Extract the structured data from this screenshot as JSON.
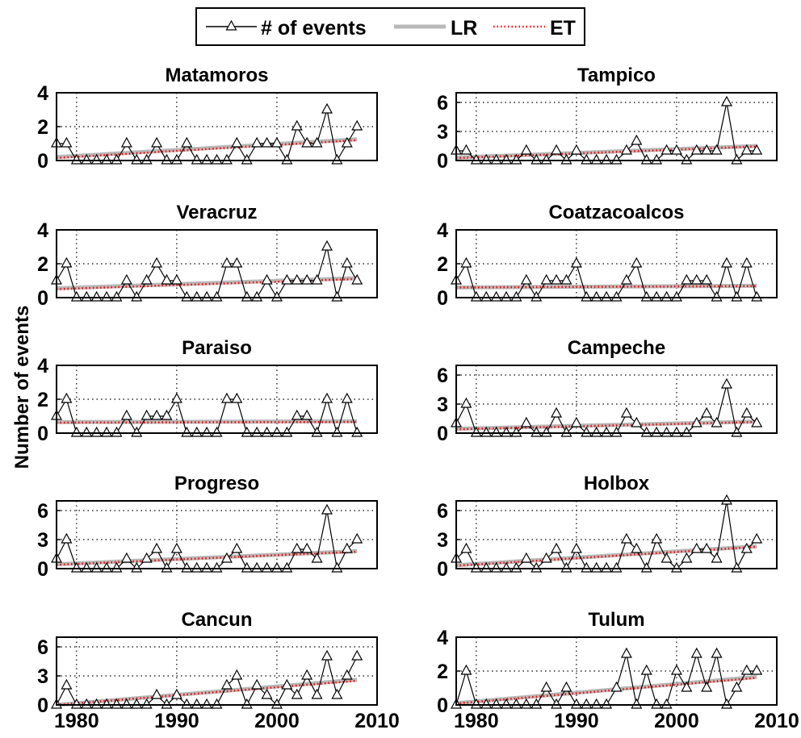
{
  "figure": {
    "ylabel": "Number of events",
    "legend": {
      "position": "top-center",
      "items": [
        {
          "label": "# of events",
          "style": "thin black line with triangle markers",
          "color": "#000000"
        },
        {
          "label": "LR",
          "style": "thick gray line",
          "color": "#b8b8b8"
        },
        {
          "label": "ET",
          "style": "red dotted line",
          "color": "#ff0000"
        }
      ]
    },
    "x_ticks": [
      "1980",
      "1990",
      "2000",
      "2010"
    ]
  },
  "chart_data": [
    {
      "type": "line",
      "title": "Matamoros",
      "grid": true,
      "xlim": [
        1978,
        2010
      ],
      "ylim": [
        0,
        4
      ],
      "yticks": [
        "0",
        "2",
        "4"
      ],
      "x": [
        1978,
        1979,
        1980,
        1981,
        1982,
        1983,
        1984,
        1985,
        1986,
        1987,
        1988,
        1989,
        1990,
        1991,
        1992,
        1993,
        1994,
        1995,
        1996,
        1997,
        1998,
        1999,
        2000,
        2001,
        2002,
        2003,
        2004,
        2005,
        2006,
        2007,
        2008
      ],
      "series": [
        {
          "name": "# of events",
          "values": [
            1,
            1,
            0,
            0,
            0,
            0,
            0,
            1,
            0,
            0,
            1,
            0,
            0,
            1,
            0,
            0,
            0,
            0,
            1,
            0,
            1,
            1,
            1,
            0,
            2,
            1,
            1,
            3,
            0,
            1,
            2
          ]
        },
        {
          "name": "LR",
          "start": [
            1978,
            0.2
          ],
          "end": [
            2008,
            1.25
          ]
        },
        {
          "name": "ET",
          "start": [
            1978,
            0.15
          ],
          "end": [
            2008,
            1.2
          ]
        }
      ]
    },
    {
      "type": "line",
      "title": "Tampico",
      "grid": true,
      "xlim": [
        1978,
        2010
      ],
      "ylim": [
        0,
        7
      ],
      "yticks": [
        "0",
        "3",
        "6"
      ],
      "x": [
        1978,
        1979,
        1980,
        1981,
        1982,
        1983,
        1984,
        1985,
        1986,
        1987,
        1988,
        1989,
        1990,
        1991,
        1992,
        1993,
        1994,
        1995,
        1996,
        1997,
        1998,
        1999,
        2000,
        2001,
        2002,
        2003,
        2004,
        2005,
        2006,
        2007,
        2008
      ],
      "series": [
        {
          "name": "# of events",
          "values": [
            1,
            1,
            0,
            0,
            0,
            0,
            0,
            1,
            0,
            0,
            1,
            0,
            1,
            0,
            0,
            0,
            0,
            1,
            2,
            0,
            0,
            1,
            1,
            0,
            1,
            1,
            1,
            6,
            0,
            1,
            1
          ]
        },
        {
          "name": "LR",
          "start": [
            1978,
            0.3
          ],
          "end": [
            2008,
            1.5
          ]
        },
        {
          "name": "ET",
          "start": [
            1978,
            0.25
          ],
          "end": [
            2008,
            1.45
          ]
        }
      ]
    },
    {
      "type": "line",
      "title": "Veracruz",
      "grid": true,
      "xlim": [
        1978,
        2010
      ],
      "ylim": [
        0,
        4
      ],
      "yticks": [
        "0",
        "2",
        "4"
      ],
      "x": [
        1978,
        1979,
        1980,
        1981,
        1982,
        1983,
        1984,
        1985,
        1986,
        1987,
        1988,
        1989,
        1990,
        1991,
        1992,
        1993,
        1994,
        1995,
        1996,
        1997,
        1998,
        1999,
        2000,
        2001,
        2002,
        2003,
        2004,
        2005,
        2006,
        2007,
        2008
      ],
      "series": [
        {
          "name": "# of events",
          "values": [
            1,
            2,
            0,
            0,
            0,
            0,
            0,
            1,
            0,
            1,
            2,
            1,
            1,
            0,
            0,
            0,
            0,
            2,
            2,
            0,
            0,
            1,
            0,
            1,
            1,
            1,
            1,
            3,
            0,
            2,
            1
          ]
        },
        {
          "name": "LR",
          "start": [
            1978,
            0.55
          ],
          "end": [
            2008,
            1.15
          ]
        },
        {
          "name": "ET",
          "start": [
            1978,
            0.5
          ],
          "end": [
            2008,
            1.1
          ]
        }
      ]
    },
    {
      "type": "line",
      "title": "Coatzacoalcos",
      "grid": true,
      "xlim": [
        1978,
        2010
      ],
      "ylim": [
        0,
        4
      ],
      "yticks": [
        "0",
        "2",
        "4"
      ],
      "x": [
        1978,
        1979,
        1980,
        1981,
        1982,
        1983,
        1984,
        1985,
        1986,
        1987,
        1988,
        1989,
        1990,
        1991,
        1992,
        1993,
        1994,
        1995,
        1996,
        1997,
        1998,
        1999,
        2000,
        2001,
        2002,
        2003,
        2004,
        2005,
        2006,
        2007,
        2008
      ],
      "series": [
        {
          "name": "# of events",
          "values": [
            1,
            2,
            0,
            0,
            0,
            0,
            0,
            1,
            0,
            1,
            1,
            1,
            2,
            0,
            0,
            0,
            0,
            1,
            2,
            0,
            0,
            0,
            0,
            1,
            1,
            1,
            0,
            2,
            0,
            2,
            0
          ]
        },
        {
          "name": "LR",
          "start": [
            1978,
            0.6
          ],
          "end": [
            2008,
            0.7
          ]
        },
        {
          "name": "ET",
          "start": [
            1978,
            0.6
          ],
          "end": [
            2008,
            0.68
          ]
        }
      ]
    },
    {
      "type": "line",
      "title": "Paraiso",
      "grid": true,
      "xlim": [
        1978,
        2010
      ],
      "ylim": [
        0,
        4
      ],
      "yticks": [
        "0",
        "2",
        "4"
      ],
      "x": [
        1978,
        1979,
        1980,
        1981,
        1982,
        1983,
        1984,
        1985,
        1986,
        1987,
        1988,
        1989,
        1990,
        1991,
        1992,
        1993,
        1994,
        1995,
        1996,
        1997,
        1998,
        1999,
        2000,
        2001,
        2002,
        2003,
        2004,
        2005,
        2006,
        2007,
        2008
      ],
      "series": [
        {
          "name": "# of events",
          "values": [
            1,
            2,
            0,
            0,
            0,
            0,
            0,
            1,
            0,
            1,
            1,
            1,
            2,
            0,
            0,
            0,
            0,
            2,
            2,
            0,
            0,
            0,
            0,
            0,
            1,
            1,
            0,
            2,
            0,
            2,
            0
          ]
        },
        {
          "name": "LR",
          "start": [
            1978,
            0.65
          ],
          "end": [
            2008,
            0.7
          ]
        },
        {
          "name": "ET",
          "start": [
            1978,
            0.62
          ],
          "end": [
            2008,
            0.66
          ]
        }
      ]
    },
    {
      "type": "line",
      "title": "Campeche",
      "grid": true,
      "xlim": [
        1978,
        2010
      ],
      "ylim": [
        0,
        7
      ],
      "yticks": [
        "0",
        "3",
        "6"
      ],
      "x": [
        1978,
        1979,
        1980,
        1981,
        1982,
        1983,
        1984,
        1985,
        1986,
        1987,
        1988,
        1989,
        1990,
        1991,
        1992,
        1993,
        1994,
        1995,
        1996,
        1997,
        1998,
        1999,
        2000,
        2001,
        2002,
        2003,
        2004,
        2005,
        2006,
        2007,
        2008
      ],
      "series": [
        {
          "name": "# of events",
          "values": [
            1,
            3,
            0,
            0,
            0,
            0,
            0,
            1,
            0,
            0,
            2,
            0,
            1,
            0,
            0,
            0,
            0,
            2,
            1,
            0,
            0,
            0,
            0,
            0,
            1,
            2,
            1,
            5,
            0,
            2,
            1
          ]
        },
        {
          "name": "LR",
          "start": [
            1978,
            0.45
          ],
          "end": [
            2008,
            1.2
          ]
        },
        {
          "name": "ET",
          "start": [
            1978,
            0.4
          ],
          "end": [
            2008,
            1.15
          ]
        }
      ]
    },
    {
      "type": "line",
      "title": "Progreso",
      "grid": true,
      "xlim": [
        1978,
        2010
      ],
      "ylim": [
        0,
        7
      ],
      "yticks": [
        "0",
        "3",
        "6"
      ],
      "x": [
        1978,
        1979,
        1980,
        1981,
        1982,
        1983,
        1984,
        1985,
        1986,
        1987,
        1988,
        1989,
        1990,
        1991,
        1992,
        1993,
        1994,
        1995,
        1996,
        1997,
        1998,
        1999,
        2000,
        2001,
        2002,
        2003,
        2004,
        2005,
        2006,
        2007,
        2008
      ],
      "series": [
        {
          "name": "# of events",
          "values": [
            1,
            3,
            0,
            0,
            0,
            0,
            0,
            1,
            0,
            1,
            2,
            0,
            2,
            0,
            0,
            0,
            0,
            1,
            2,
            0,
            0,
            0,
            0,
            0,
            2,
            2,
            1,
            6,
            0,
            2,
            3
          ]
        },
        {
          "name": "LR",
          "start": [
            1978,
            0.45
          ],
          "end": [
            2008,
            1.8
          ]
        },
        {
          "name": "ET",
          "start": [
            1978,
            0.4
          ],
          "end": [
            2008,
            1.75
          ]
        }
      ]
    },
    {
      "type": "line",
      "title": "Holbox",
      "grid": true,
      "xlim": [
        1978,
        2010
      ],
      "ylim": [
        0,
        7
      ],
      "yticks": [
        "0",
        "3",
        "6"
      ],
      "x": [
        1978,
        1979,
        1980,
        1981,
        1982,
        1983,
        1984,
        1985,
        1986,
        1987,
        1988,
        1989,
        1990,
        1991,
        1992,
        1993,
        1994,
        1995,
        1996,
        1997,
        1998,
        1999,
        2000,
        2001,
        2002,
        2003,
        2004,
        2005,
        2006,
        2007,
        2008
      ],
      "series": [
        {
          "name": "# of events",
          "values": [
            1,
            2,
            0,
            0,
            0,
            0,
            0,
            1,
            0,
            1,
            2,
            0,
            2,
            0,
            0,
            0,
            0,
            3,
            2,
            0,
            3,
            1,
            0,
            1,
            2,
            2,
            1,
            7,
            0,
            2,
            3
          ]
        },
        {
          "name": "LR",
          "start": [
            1978,
            0.35
          ],
          "end": [
            2008,
            2.3
          ]
        },
        {
          "name": "ET",
          "start": [
            1978,
            0.3
          ],
          "end": [
            2008,
            2.25
          ]
        }
      ]
    },
    {
      "type": "line",
      "title": "Cancun",
      "grid": true,
      "xlim": [
        1978,
        2010
      ],
      "ylim": [
        0,
        7
      ],
      "yticks": [
        "0",
        "3",
        "6"
      ],
      "x": [
        1978,
        1979,
        1980,
        1981,
        1982,
        1983,
        1984,
        1985,
        1986,
        1987,
        1988,
        1989,
        1990,
        1991,
        1992,
        1993,
        1994,
        1995,
        1996,
        1997,
        1998,
        1999,
        2000,
        2001,
        2002,
        2003,
        2004,
        2005,
        2006,
        2007,
        2008
      ],
      "series": [
        {
          "name": "# of events",
          "values": [
            0,
            2,
            0,
            0,
            0,
            0,
            0,
            0,
            0,
            0,
            1,
            0,
            1,
            0,
            0,
            0,
            0,
            2,
            3,
            0,
            2,
            1,
            0,
            2,
            1,
            3,
            1,
            5,
            1,
            3,
            5
          ]
        },
        {
          "name": "LR",
          "start": [
            1978,
            0.0
          ],
          "end": [
            2008,
            2.6
          ]
        },
        {
          "name": "ET",
          "start": [
            1978,
            0.0
          ],
          "end": [
            2008,
            2.5
          ]
        }
      ]
    },
    {
      "type": "line",
      "title": "Tulum",
      "grid": true,
      "xlim": [
        1978,
        2010
      ],
      "ylim": [
        0,
        4
      ],
      "yticks": [
        "0",
        "2",
        "4"
      ],
      "x": [
        1978,
        1979,
        1980,
        1981,
        1982,
        1983,
        1984,
        1985,
        1986,
        1987,
        1988,
        1989,
        1990,
        1991,
        1992,
        1993,
        1994,
        1995,
        1996,
        1997,
        1998,
        1999,
        2000,
        2001,
        2002,
        2003,
        2004,
        2005,
        2006,
        2007,
        2008
      ],
      "series": [
        {
          "name": "# of events",
          "values": [
            0,
            2,
            0,
            0,
            0,
            0,
            0,
            0,
            0,
            1,
            0,
            1,
            0,
            0,
            0,
            0,
            1,
            3,
            0,
            2,
            0,
            0,
            2,
            1,
            3,
            1,
            3,
            0,
            1,
            2,
            2
          ]
        },
        {
          "name": "LR",
          "start": [
            1978,
            0.1
          ],
          "end": [
            2008,
            1.65
          ]
        },
        {
          "name": "ET",
          "start": [
            1978,
            0.08
          ],
          "end": [
            2008,
            1.6
          ]
        }
      ]
    }
  ]
}
